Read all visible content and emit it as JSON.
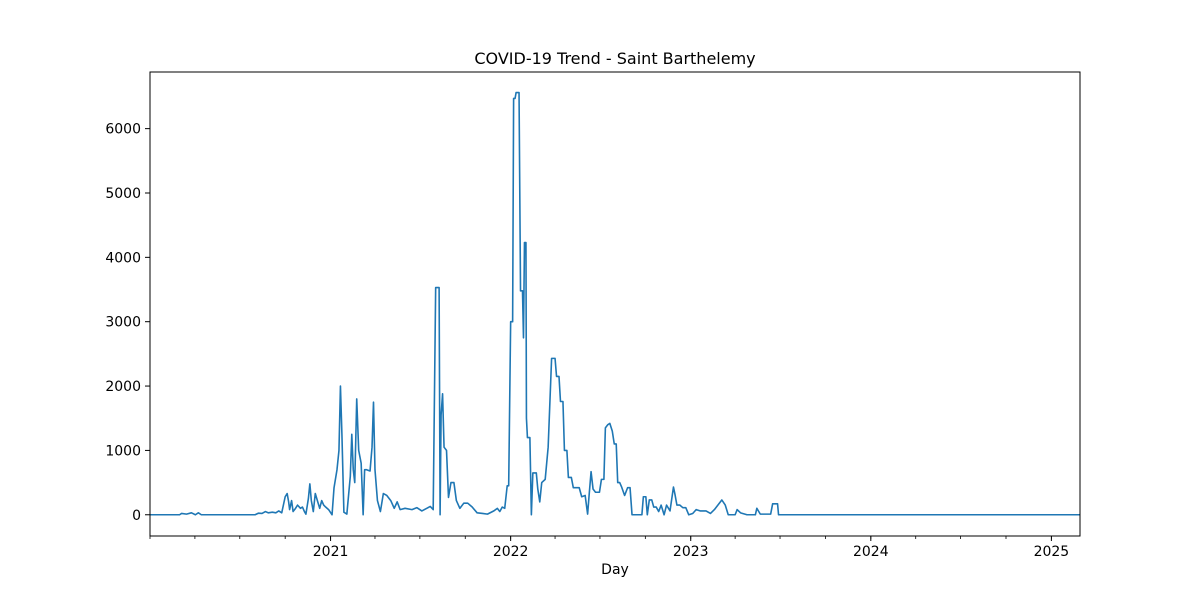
{
  "chart_data": {
    "type": "line",
    "title": "COVID-19 Trend - Saint Barthelemy",
    "xlabel": "Day",
    "ylabel": "",
    "xlim": [
      "2020-01-01",
      "2025-02-28"
    ],
    "ylim": [
      -330,
      6880
    ],
    "x_ticks": [
      {
        "date": "2021-01-01",
        "label": "2021"
      },
      {
        "date": "2022-01-01",
        "label": "2022"
      },
      {
        "date": "2023-01-01",
        "label": "2023"
      },
      {
        "date": "2024-01-01",
        "label": "2024"
      },
      {
        "date": "2025-01-01",
        "label": "2025"
      }
    ],
    "y_ticks": [
      0,
      1000,
      2000,
      3000,
      4000,
      5000,
      6000
    ],
    "grid": false,
    "series_color": "#1f77b4",
    "series": [
      {
        "name": "",
        "points": [
          [
            "2020-01-01",
            0
          ],
          [
            "2020-03-01",
            0
          ],
          [
            "2020-03-05",
            20
          ],
          [
            "2020-03-15",
            10
          ],
          [
            "2020-03-25",
            30
          ],
          [
            "2020-04-02",
            0
          ],
          [
            "2020-04-08",
            30
          ],
          [
            "2020-04-14",
            0
          ],
          [
            "2020-08-01",
            0
          ],
          [
            "2020-08-08",
            25
          ],
          [
            "2020-08-15",
            20
          ],
          [
            "2020-08-22",
            50
          ],
          [
            "2020-08-28",
            30
          ],
          [
            "2020-09-05",
            40
          ],
          [
            "2020-09-12",
            30
          ],
          [
            "2020-09-18",
            60
          ],
          [
            "2020-09-24",
            30
          ],
          [
            "2020-10-01",
            280
          ],
          [
            "2020-10-05",
            330
          ],
          [
            "2020-10-08",
            200
          ],
          [
            "2020-10-10",
            80
          ],
          [
            "2020-10-14",
            220
          ],
          [
            "2020-10-17",
            50
          ],
          [
            "2020-10-22",
            100
          ],
          [
            "2020-10-26",
            150
          ],
          [
            "2020-11-01",
            100
          ],
          [
            "2020-11-05",
            120
          ],
          [
            "2020-11-09",
            50
          ],
          [
            "2020-11-12",
            10
          ],
          [
            "2020-11-17",
            250
          ],
          [
            "2020-11-20",
            480
          ],
          [
            "2020-11-23",
            220
          ],
          [
            "2020-11-27",
            50
          ],
          [
            "2020-12-01",
            330
          ],
          [
            "2020-12-06",
            200
          ],
          [
            "2020-12-10",
            100
          ],
          [
            "2020-12-14",
            220
          ],
          [
            "2020-12-18",
            150
          ],
          [
            "2020-12-22",
            120
          ],
          [
            "2020-12-28",
            80
          ],
          [
            "2021-01-04",
            0
          ],
          [
            "2021-01-08",
            420
          ],
          [
            "2021-01-14",
            700
          ],
          [
            "2021-01-18",
            1000
          ],
          [
            "2021-01-21",
            2000
          ],
          [
            "2021-01-24",
            1250
          ],
          [
            "2021-01-28",
            40
          ],
          [
            "2021-02-03",
            10
          ],
          [
            "2021-02-10",
            600
          ],
          [
            "2021-02-13",
            1250
          ],
          [
            "2021-02-16",
            700
          ],
          [
            "2021-02-19",
            500
          ],
          [
            "2021-02-23",
            1800
          ],
          [
            "2021-02-27",
            1000
          ],
          [
            "2021-03-04",
            800
          ],
          [
            "2021-03-08",
            0
          ],
          [
            "2021-03-11",
            700
          ],
          [
            "2021-03-15",
            700
          ],
          [
            "2021-03-22",
            680
          ],
          [
            "2021-03-26",
            1050
          ],
          [
            "2021-03-29",
            1750
          ],
          [
            "2021-04-01",
            700
          ],
          [
            "2021-04-06",
            220
          ],
          [
            "2021-04-12",
            50
          ],
          [
            "2021-04-18",
            330
          ],
          [
            "2021-04-25",
            300
          ],
          [
            "2021-05-03",
            220
          ],
          [
            "2021-05-10",
            100
          ],
          [
            "2021-05-16",
            200
          ],
          [
            "2021-05-22",
            80
          ],
          [
            "2021-06-01",
            100
          ],
          [
            "2021-06-15",
            80
          ],
          [
            "2021-06-25",
            110
          ],
          [
            "2021-07-05",
            60
          ],
          [
            "2021-07-15",
            100
          ],
          [
            "2021-07-22",
            130
          ],
          [
            "2021-07-28",
            80
          ],
          [
            "2021-08-02",
            3530
          ],
          [
            "2021-08-09",
            3530
          ],
          [
            "2021-08-11",
            0
          ],
          [
            "2021-08-13",
            1550
          ],
          [
            "2021-08-16",
            1880
          ],
          [
            "2021-08-19",
            1050
          ],
          [
            "2021-08-24",
            1000
          ],
          [
            "2021-08-28",
            270
          ],
          [
            "2021-09-02",
            500
          ],
          [
            "2021-09-08",
            500
          ],
          [
            "2021-09-13",
            220
          ],
          [
            "2021-09-20",
            100
          ],
          [
            "2021-09-28",
            180
          ],
          [
            "2021-10-06",
            180
          ],
          [
            "2021-10-15",
            120
          ],
          [
            "2021-10-25",
            30
          ],
          [
            "2021-11-05",
            20
          ],
          [
            "2021-11-15",
            10
          ],
          [
            "2021-11-28",
            60
          ],
          [
            "2021-12-05",
            100
          ],
          [
            "2021-12-10",
            50
          ],
          [
            "2021-12-15",
            120
          ],
          [
            "2021-12-20",
            100
          ],
          [
            "2021-12-25",
            450
          ],
          [
            "2021-12-28",
            450
          ],
          [
            "2022-01-01",
            3000
          ],
          [
            "2022-01-05",
            3000
          ],
          [
            "2022-01-07",
            6470
          ],
          [
            "2022-01-10",
            6470
          ],
          [
            "2022-01-12",
            6560
          ],
          [
            "2022-01-18",
            6560
          ],
          [
            "2022-01-21",
            3480
          ],
          [
            "2022-01-25",
            3480
          ],
          [
            "2022-01-27",
            2750
          ],
          [
            "2022-01-29",
            4230
          ],
          [
            "2022-02-01",
            4230
          ],
          [
            "2022-02-02",
            1500
          ],
          [
            "2022-02-04",
            1200
          ],
          [
            "2022-02-09",
            1200
          ],
          [
            "2022-02-12",
            0
          ],
          [
            "2022-02-15",
            650
          ],
          [
            "2022-02-22",
            650
          ],
          [
            "2022-02-25",
            400
          ],
          [
            "2022-03-01",
            200
          ],
          [
            "2022-03-05",
            500
          ],
          [
            "2022-03-12",
            550
          ],
          [
            "2022-03-18",
            1050
          ],
          [
            "2022-03-25",
            2430
          ],
          [
            "2022-04-01",
            2430
          ],
          [
            "2022-04-04",
            2150
          ],
          [
            "2022-04-09",
            2150
          ],
          [
            "2022-04-12",
            1760
          ],
          [
            "2022-04-17",
            1760
          ],
          [
            "2022-04-20",
            1000
          ],
          [
            "2022-04-25",
            1000
          ],
          [
            "2022-04-28",
            580
          ],
          [
            "2022-05-04",
            580
          ],
          [
            "2022-05-08",
            420
          ],
          [
            "2022-05-20",
            420
          ],
          [
            "2022-05-25",
            280
          ],
          [
            "2022-06-01",
            300
          ],
          [
            "2022-06-06",
            10
          ],
          [
            "2022-06-09",
            300
          ],
          [
            "2022-06-13",
            670
          ],
          [
            "2022-06-17",
            400
          ],
          [
            "2022-06-22",
            350
          ],
          [
            "2022-06-30",
            350
          ],
          [
            "2022-07-04",
            550
          ],
          [
            "2022-07-09",
            550
          ],
          [
            "2022-07-12",
            1350
          ],
          [
            "2022-07-17",
            1400
          ],
          [
            "2022-07-21",
            1420
          ],
          [
            "2022-07-26",
            1300
          ],
          [
            "2022-07-30",
            1100
          ],
          [
            "2022-08-03",
            1100
          ],
          [
            "2022-08-06",
            500
          ],
          [
            "2022-08-10",
            500
          ],
          [
            "2022-08-14",
            430
          ],
          [
            "2022-08-20",
            300
          ],
          [
            "2022-08-26",
            420
          ],
          [
            "2022-08-31",
            420
          ],
          [
            "2022-09-04",
            0
          ],
          [
            "2022-09-24",
            0
          ],
          [
            "2022-09-27",
            280
          ],
          [
            "2022-10-02",
            280
          ],
          [
            "2022-10-05",
            0
          ],
          [
            "2022-10-09",
            230
          ],
          [
            "2022-10-14",
            230
          ],
          [
            "2022-10-18",
            120
          ],
          [
            "2022-10-23",
            120
          ],
          [
            "2022-10-28",
            50
          ],
          [
            "2022-11-02",
            150
          ],
          [
            "2022-11-08",
            0
          ],
          [
            "2022-11-13",
            150
          ],
          [
            "2022-11-20",
            60
          ],
          [
            "2022-11-27",
            430
          ],
          [
            "2022-11-30",
            320
          ],
          [
            "2022-12-04",
            150
          ],
          [
            "2022-12-10",
            150
          ],
          [
            "2022-12-16",
            110
          ],
          [
            "2022-12-22",
            110
          ],
          [
            "2022-12-28",
            0
          ],
          [
            "2023-01-05",
            20
          ],
          [
            "2023-01-12",
            80
          ],
          [
            "2023-01-20",
            60
          ],
          [
            "2023-02-01",
            60
          ],
          [
            "2023-02-10",
            20
          ],
          [
            "2023-02-18",
            80
          ],
          [
            "2023-03-05",
            230
          ],
          [
            "2023-03-12",
            150
          ],
          [
            "2023-03-18",
            0
          ],
          [
            "2023-04-01",
            0
          ],
          [
            "2023-04-05",
            80
          ],
          [
            "2023-04-12",
            30
          ],
          [
            "2023-04-25",
            0
          ],
          [
            "2023-05-12",
            0
          ],
          [
            "2023-05-15",
            100
          ],
          [
            "2023-05-22",
            10
          ],
          [
            "2023-06-12",
            10
          ],
          [
            "2023-06-16",
            170
          ],
          [
            "2023-06-26",
            170
          ],
          [
            "2023-06-28",
            0
          ],
          [
            "2024-06-01",
            0
          ],
          [
            "2025-02-28",
            0
          ]
        ]
      }
    ]
  }
}
